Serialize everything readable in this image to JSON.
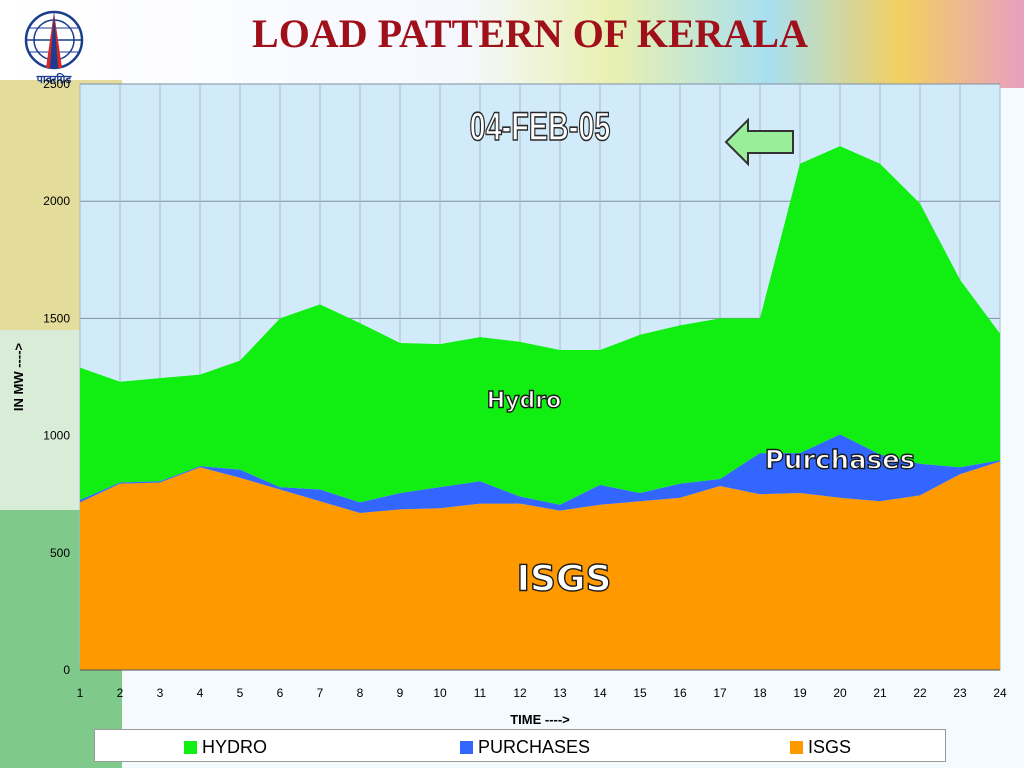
{
  "header": {
    "title": "LOAD PATTERN OF KERALA",
    "logo_text": "पावरग्रिड"
  },
  "colors": {
    "hydro": "#11ee11",
    "purchases": "#3366ff",
    "isgs": "#ff9900",
    "plot_bg": "#d2ebfb",
    "title": "#a0101a",
    "arrow": "#99ee99"
  },
  "chart_data": {
    "type": "area",
    "stacked": true,
    "title": "LOAD PATTERN OF KERALA",
    "date_label": "04-FEB-05",
    "xlabel": "TIME ---->",
    "ylabel": "IN MW ---->",
    "x": [
      1,
      2,
      3,
      4,
      5,
      6,
      7,
      8,
      9,
      10,
      11,
      12,
      13,
      14,
      15,
      16,
      17,
      18,
      19,
      20,
      21,
      22,
      23,
      24
    ],
    "ylim": [
      0,
      2500
    ],
    "yticks": [
      0,
      500,
      1000,
      1500,
      2000,
      2500
    ],
    "grid": true,
    "legend_position": "bottom",
    "series": [
      {
        "name": "ISGS",
        "color_key": "isgs",
        "values": [
          715,
          795,
          800,
          865,
          820,
          770,
          720,
          670,
          685,
          690,
          710,
          710,
          680,
          705,
          720,
          735,
          785,
          750,
          755,
          735,
          720,
          745,
          835,
          890
        ]
      },
      {
        "name": "PURCHASES",
        "color_key": "purchases",
        "values": [
          10,
          5,
          5,
          5,
          35,
          10,
          50,
          45,
          70,
          90,
          95,
          30,
          25,
          85,
          35,
          60,
          30,
          175,
          170,
          270,
          200,
          135,
          30,
          5
        ]
      },
      {
        "name": "HYDRO",
        "color_key": "hydro",
        "values": [
          565,
          430,
          440,
          390,
          465,
          720,
          790,
          765,
          640,
          610,
          615,
          660,
          660,
          575,
          675,
          675,
          685,
          575,
          1235,
          1230,
          1240,
          1110,
          800,
          540
        ]
      }
    ],
    "annotations": [
      {
        "text": "Hydro",
        "x": 12.1,
        "y": 1120,
        "size": 22
      },
      {
        "text": "Purchases",
        "x": 20,
        "y": 860,
        "size": 26
      },
      {
        "text": "ISGS",
        "x": 13.1,
        "y": 340,
        "size": 36
      }
    ],
    "legend": [
      "HYDRO",
      "PURCHASES",
      "ISGS"
    ]
  }
}
